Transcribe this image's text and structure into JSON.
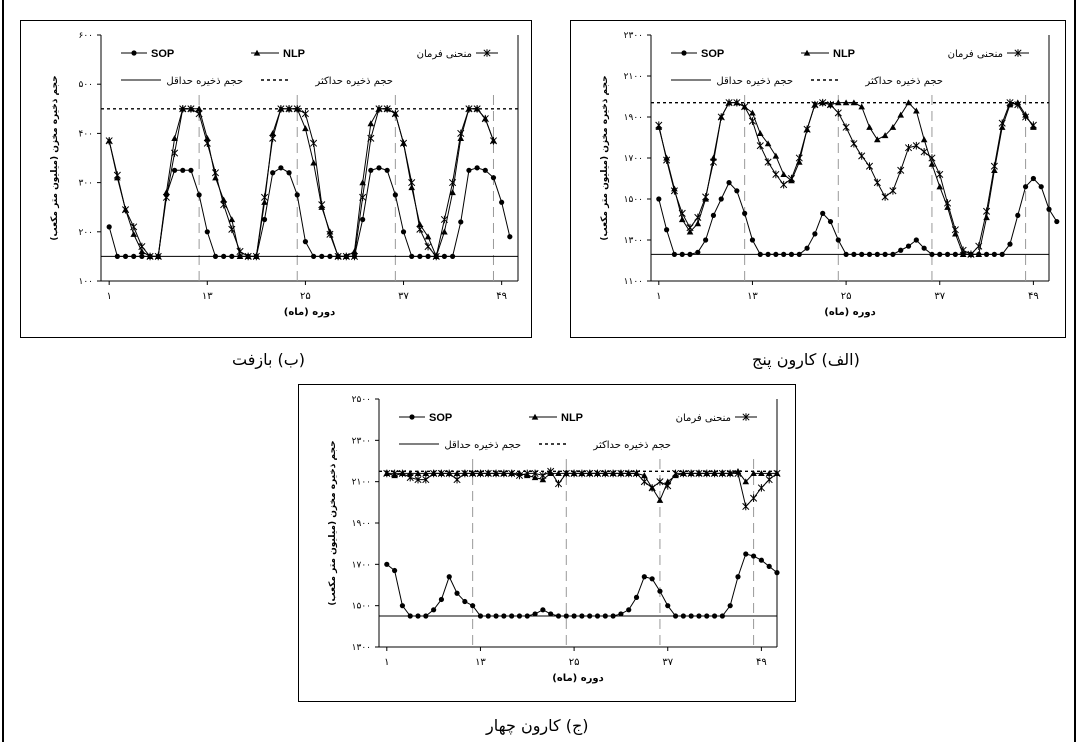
{
  "figure": {
    "caption_b": "(ب) بازفت",
    "caption_alef": "(الف) کارون پنج",
    "caption_jim": "(ج) کارون چهار"
  },
  "colors": {
    "line": "#000000",
    "grid": "#9a9a9a"
  },
  "chart_data": [
    {
      "id": "bazoft",
      "type": "line",
      "ylabel": "حجم ذخیره مخزن (میلیون متر مکعب)",
      "xlabel": "دوره (ماه)",
      "x_ticks": [
        1,
        13,
        25,
        37,
        49
      ],
      "x_tick_labels": [
        "۱",
        "۱۳",
        "۲۵",
        "۳۷",
        "۴۹"
      ],
      "y_ticks": [
        100,
        200,
        300,
        400,
        500,
        600
      ],
      "y_tick_labels": [
        "۱۰۰",
        "۲۰۰",
        "۳۰۰",
        "۴۰۰",
        "۵۰۰",
        "۶۰۰"
      ],
      "ylim": [
        100,
        600
      ],
      "xlim": [
        0,
        51
      ],
      "legend": [
        "SOP",
        "NLP",
        "منحنی فرمان",
        "حجم ذخیره حداقل",
        "حجم ذخیره حداکثر"
      ],
      "min_storage": 150,
      "max_storage": 450,
      "vgrid_x": [
        12,
        24,
        36,
        48
      ],
      "series": [
        {
          "name": "SOP",
          "marker": "circle",
          "values": [
            210,
            150,
            150,
            150,
            150,
            150,
            150,
            275,
            325,
            325,
            325,
            275,
            200,
            150,
            150,
            150,
            150,
            150,
            150,
            225,
            320,
            330,
            320,
            275,
            180,
            150,
            150,
            150,
            150,
            150,
            150,
            225,
            325,
            330,
            325,
            275,
            200,
            150,
            150,
            150,
            150,
            150,
            150,
            220,
            325,
            330,
            325,
            310,
            260,
            190
          ]
        },
        {
          "name": "NLP",
          "marker": "triangle",
          "values": [
            385,
            310,
            245,
            195,
            160,
            150,
            150,
            280,
            390,
            450,
            450,
            450,
            390,
            310,
            265,
            225,
            150,
            150,
            150,
            260,
            400,
            450,
            450,
            450,
            410,
            340,
            250,
            200,
            150,
            150,
            160,
            300,
            420,
            450,
            450,
            440,
            380,
            290,
            215,
            190,
            150,
            200,
            280,
            390,
            450,
            450,
            430,
            385
          ]
        },
        {
          "name": "منحنی فرمان",
          "marker": "star",
          "values": [
            385,
            315,
            245,
            210,
            170,
            150,
            150,
            270,
            360,
            450,
            450,
            440,
            380,
            320,
            255,
            205,
            160,
            150,
            150,
            270,
            390,
            450,
            450,
            450,
            440,
            380,
            255,
            195,
            150,
            150,
            150,
            270,
            390,
            450,
            450,
            440,
            380,
            300,
            205,
            170,
            150,
            225,
            300,
            400,
            450,
            450,
            430,
            385
          ]
        }
      ]
    },
    {
      "id": "karun5",
      "type": "line",
      "ylabel": "حجم ذخیره مخزن (میلیون متر مکعب)",
      "xlabel": "دوره (ماه)",
      "x_ticks": [
        1,
        13,
        25,
        37,
        49
      ],
      "x_tick_labels": [
        "۱",
        "۱۳",
        "۲۵",
        "۳۷",
        "۴۹"
      ],
      "y_ticks": [
        1100,
        1300,
        1500,
        1700,
        1900,
        2100,
        2300
      ],
      "y_tick_labels": [
        "۱۱۰۰",
        "۱۳۰۰",
        "۱۵۰۰",
        "۱۷۰۰",
        "۱۹۰۰",
        "۲۱۰۰",
        "۲۳۰۰"
      ],
      "ylim": [
        1100,
        2300
      ],
      "xlim": [
        0,
        51
      ],
      "legend": [
        "SOP",
        "NLP",
        "منحنی فرمان",
        "حجم ذخیره حداقل",
        "حجم ذخیره حداکثر"
      ],
      "min_storage": 1230,
      "max_storage": 1970,
      "vgrid_x": [
        12,
        24,
        36,
        48
      ],
      "series": [
        {
          "name": "SOP",
          "marker": "circle",
          "values": [
            1500,
            1350,
            1230,
            1230,
            1230,
            1240,
            1300,
            1420,
            1500,
            1580,
            1540,
            1430,
            1300,
            1230,
            1230,
            1230,
            1230,
            1230,
            1230,
            1260,
            1330,
            1430,
            1390,
            1300,
            1230,
            1230,
            1230,
            1230,
            1230,
            1230,
            1230,
            1250,
            1270,
            1300,
            1260,
            1230,
            1230,
            1230,
            1230,
            1230,
            1230,
            1230,
            1230,
            1230,
            1230,
            1280,
            1420,
            1560,
            1600,
            1560,
            1450,
            1390
          ]
        },
        {
          "name": "NLP",
          "marker": "triangle",
          "values": [
            1850,
            1700,
            1550,
            1400,
            1340,
            1380,
            1500,
            1700,
            1900,
            1970,
            1970,
            1950,
            1920,
            1820,
            1770,
            1710,
            1620,
            1590,
            1680,
            1840,
            1960,
            1970,
            1960,
            1970,
            1970,
            1970,
            1950,
            1850,
            1790,
            1810,
            1850,
            1910,
            1970,
            1930,
            1790,
            1670,
            1560,
            1460,
            1330,
            1230,
            1230,
            1230,
            1410,
            1640,
            1850,
            1960,
            1970,
            1910,
            1850
          ]
        },
        {
          "name": "منحنی فرمان",
          "marker": "star",
          "values": [
            1860,
            1690,
            1540,
            1430,
            1360,
            1410,
            1510,
            1680,
            1900,
            1970,
            1970,
            1950,
            1880,
            1760,
            1680,
            1620,
            1570,
            1600,
            1700,
            1840,
            1960,
            1970,
            1960,
            1920,
            1850,
            1770,
            1710,
            1660,
            1580,
            1510,
            1540,
            1640,
            1750,
            1760,
            1730,
            1700,
            1620,
            1480,
            1350,
            1250,
            1230,
            1270,
            1440,
            1660,
            1870,
            1970,
            1960,
            1900,
            1860
          ]
        }
      ]
    },
    {
      "id": "karun4",
      "type": "line",
      "ylabel": "حجم ذخیره مخزن (میلیون متر مکعب)",
      "xlabel": "دوره (ماه)",
      "x_ticks": [
        1,
        13,
        25,
        37,
        49
      ],
      "x_tick_labels": [
        "۱",
        "۱۳",
        "۲۵",
        "۳۷",
        "۴۹"
      ],
      "y_ticks": [
        1300,
        1500,
        1700,
        1900,
        2100,
        2300,
        2500
      ],
      "y_tick_labels": [
        "۱۳۰۰",
        "۱۵۰۰",
        "۱۷۰۰",
        "۱۹۰۰",
        "۲۱۰۰",
        "۲۳۰۰",
        "۲۵۰۰"
      ],
      "ylim": [
        1300,
        2500
      ],
      "xlim": [
        0,
        51
      ],
      "legend": [
        "SOP",
        "NLP",
        "منحنی فرمان",
        "حجم ذخیره حداقل",
        "حجم ذخیره حداکثر"
      ],
      "min_storage": 1450,
      "max_storage": 2150,
      "vgrid_x": [
        12,
        24,
        36,
        48
      ],
      "series": [
        {
          "name": "SOP",
          "marker": "circle",
          "values": [
            1700,
            1670,
            1500,
            1450,
            1450,
            1450,
            1480,
            1530,
            1640,
            1560,
            1520,
            1500,
            1450,
            1450,
            1450,
            1450,
            1450,
            1450,
            1450,
            1460,
            1480,
            1460,
            1450,
            1450,
            1450,
            1450,
            1450,
            1450,
            1450,
            1450,
            1460,
            1480,
            1540,
            1640,
            1630,
            1570,
            1500,
            1450,
            1450,
            1450,
            1450,
            1450,
            1450,
            1450,
            1500,
            1640,
            1750,
            1740,
            1720,
            1690,
            1660
          ]
        },
        {
          "name": "NLP",
          "marker": "triangle",
          "values": [
            2140,
            2130,
            2140,
            2140,
            2140,
            2140,
            2140,
            2140,
            2140,
            2140,
            2140,
            2140,
            2140,
            2140,
            2140,
            2140,
            2140,
            2140,
            2130,
            2120,
            2110,
            2140,
            2140,
            2140,
            2140,
            2140,
            2140,
            2140,
            2140,
            2140,
            2140,
            2140,
            2140,
            2130,
            2070,
            2010,
            2100,
            2130,
            2140,
            2140,
            2140,
            2140,
            2140,
            2140,
            2140,
            2150,
            2100,
            2140,
            2140,
            2140,
            2140
          ]
        },
        {
          "name": "منحنی فرمان",
          "marker": "star",
          "values": [
            2140,
            2140,
            2140,
            2120,
            2110,
            2110,
            2140,
            2140,
            2140,
            2110,
            2140,
            2140,
            2140,
            2140,
            2140,
            2140,
            2140,
            2130,
            2140,
            2140,
            2130,
            2150,
            2090,
            2140,
            2140,
            2140,
            2140,
            2140,
            2140,
            2140,
            2140,
            2140,
            2140,
            2100,
            2070,
            2100,
            2080,
            2140,
            2140,
            2140,
            2140,
            2140,
            2140,
            2140,
            2140,
            2140,
            1980,
            2020,
            2070,
            2110,
            2140
          ]
        }
      ]
    }
  ]
}
